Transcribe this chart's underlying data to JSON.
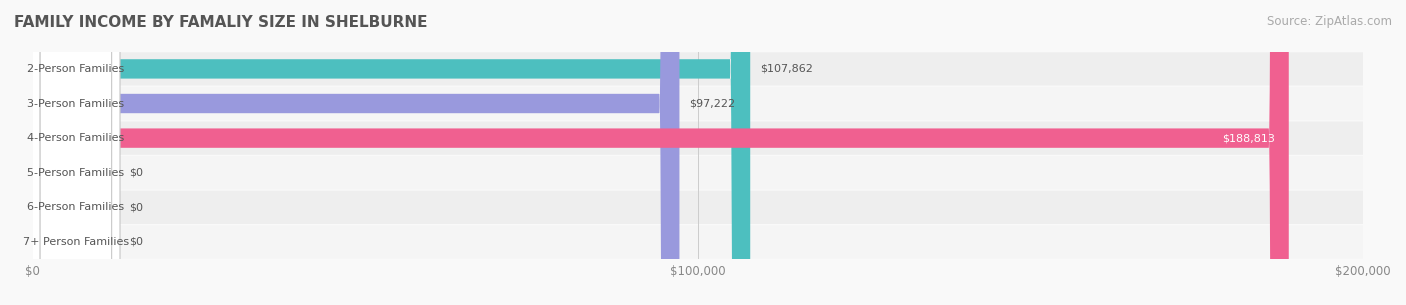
{
  "title": "FAMILY INCOME BY FAMALIY SIZE IN SHELBURNE",
  "source": "Source: ZipAtlas.com",
  "categories": [
    "2-Person Families",
    "3-Person Families",
    "4-Person Families",
    "5-Person Families",
    "6-Person Families",
    "7+ Person Families"
  ],
  "values": [
    107862,
    97222,
    188813,
    0,
    0,
    0
  ],
  "bar_colors": [
    "#4dbfbf",
    "#9999dd",
    "#f06090",
    "#f5c08a",
    "#f09090",
    "#aacce0"
  ],
  "label_colors": [
    "#4dbfbf",
    "#9999dd",
    "#f06090",
    "#f5c08a",
    "#f09090",
    "#aacce0"
  ],
  "row_bg_colors": [
    "#eeeeee",
    "#f5f5f5",
    "#eeeeee",
    "#f5f5f5",
    "#eeeeee",
    "#f5f5f5"
  ],
  "xlim": [
    0,
    200000
  ],
  "xticks": [
    0,
    100000,
    200000
  ],
  "xtick_labels": [
    "$0",
    "$100,000",
    "$200,000"
  ],
  "value_labels": [
    "$107,862",
    "$97,222",
    "$188,813",
    "$0",
    "$0",
    "$0"
  ],
  "title_fontsize": 11,
  "source_fontsize": 8.5,
  "bar_height": 0.55,
  "label_fontsize": 8,
  "value_fontsize": 8
}
